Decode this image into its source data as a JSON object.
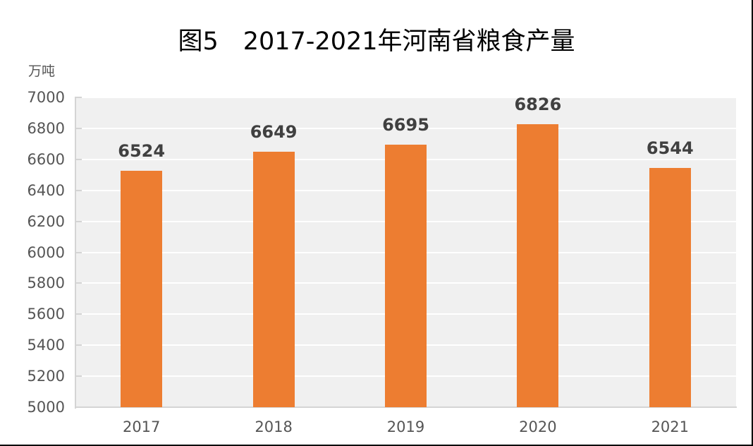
{
  "chart_data": {
    "type": "bar",
    "title": "图5　2017-2021年河南省粮食产量",
    "ylabel": "万吨",
    "xlabel": "",
    "categories": [
      "2017",
      "2018",
      "2019",
      "2020",
      "2021"
    ],
    "values": [
      6524,
      6649,
      6695,
      6826,
      6544
    ],
    "ylim": [
      5000,
      7000
    ],
    "yticks": [
      5000,
      5200,
      5400,
      5600,
      5800,
      6000,
      6200,
      6400,
      6600,
      6800,
      7000
    ],
    "grid": true,
    "legend": null,
    "bar_color": "#ed7d31",
    "plot_background": "#f0f0f0"
  },
  "title": "图5　2017-2021年河南省粮食产量",
  "unit_label": "万吨"
}
